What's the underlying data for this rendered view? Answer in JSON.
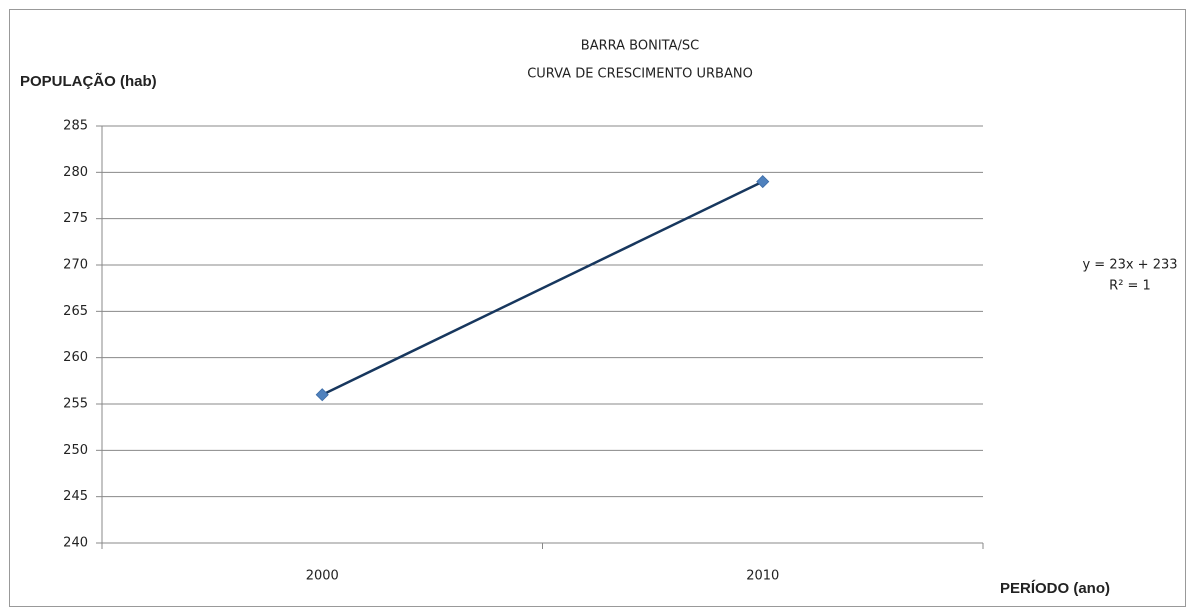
{
  "chart_data": {
    "type": "line",
    "title": "BARRA BONITA/SC",
    "subtitle": "CURVA DE CRESCIMENTO  URBANO",
    "y_label": "POPULAÇÃO (hab)",
    "x_label": "PERÍODO (ano)",
    "categories": [
      "2000",
      "2010"
    ],
    "series": [
      {
        "color": "#4f81bd",
        "line_color": "#17375e",
        "values": [
          256,
          279
        ]
      }
    ],
    "annotations": [
      "y = 23x + 233",
      "R² = 1"
    ],
    "ylim": [
      240,
      285
    ],
    "yticks": [
      240,
      245,
      250,
      255,
      260,
      265,
      270,
      275,
      280,
      285
    ],
    "grid": true
  }
}
